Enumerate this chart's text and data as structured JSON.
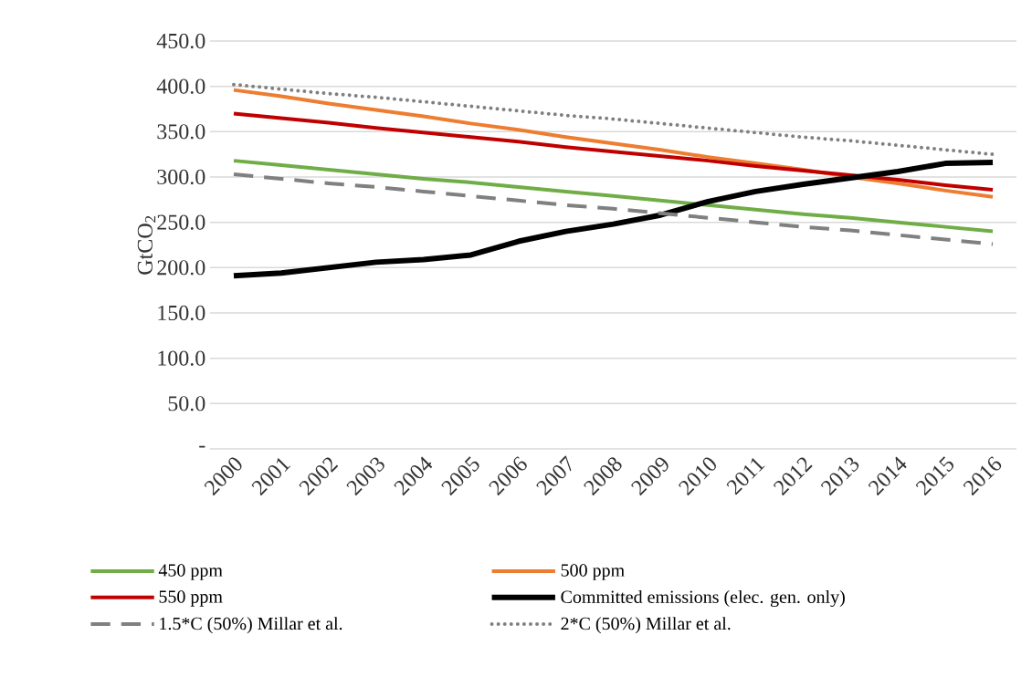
{
  "chart_data": {
    "type": "line",
    "ylabel": "GtCO$_{2}$",
    "categories": [
      "2000",
      "2001",
      "2002",
      "2003",
      "2004",
      "2005",
      "2006",
      "2007",
      "2008",
      "2009",
      "2010",
      "2011",
      "2012",
      "2013",
      "2014",
      "2015",
      "2016"
    ],
    "series": [
      {
        "name": "450 ppm",
        "color": "#70ad47",
        "line_style": "solid",
        "values": [
          318,
          313,
          308,
          303,
          298,
          294,
          289,
          284,
          279,
          274,
          269,
          264,
          259,
          255,
          250,
          245,
          240
        ]
      },
      {
        "name": "500 ppm",
        "color": "#ed7d31",
        "line_style": "solid",
        "values": [
          396,
          389,
          381,
          374,
          367,
          359,
          352,
          344,
          337,
          330,
          322,
          315,
          308,
          300,
          293,
          285,
          278
        ]
      },
      {
        "name": "550 ppm",
        "color": "#c00000",
        "line_style": "solid",
        "values": [
          370,
          365,
          360,
          354,
          349,
          344,
          339,
          333,
          328,
          323,
          318,
          312,
          307,
          302,
          297,
          291,
          286
        ]
      },
      {
        "name": "Committed emissions (elec. gen. only)",
        "color": "#000000",
        "line_style": "solid",
        "values": [
          191,
          194,
          200,
          206,
          209,
          214,
          229,
          240,
          248,
          258,
          273,
          284,
          292,
          299,
          306,
          315,
          316
        ]
      },
      {
        "name": "1.5*C (50%) Millar et al.",
        "color": "#808080",
        "line_style": "dashed",
        "values": [
          303,
          298,
          293,
          289,
          284,
          279,
          274,
          269,
          265,
          260,
          255,
          250,
          245,
          241,
          236,
          231,
          226
        ]
      },
      {
        "name": "2*C (50%) Millar et al.",
        "color": "#808080",
        "line_style": "dotted",
        "values": [
          402,
          397,
          392,
          388,
          383,
          378,
          373,
          368,
          364,
          359,
          354,
          349,
          344,
          340,
          335,
          330,
          325
        ]
      }
    ],
    "ylim": [
      0,
      450
    ],
    "yticks": [
      {
        "value": 0,
        "label": "-"
      },
      {
        "value": 50,
        "label": "50.0"
      },
      {
        "value": 100,
        "label": "100.0"
      },
      {
        "value": 150,
        "label": "150.0"
      },
      {
        "value": 200,
        "label": "200.0"
      },
      {
        "value": 250,
        "label": "250.0"
      },
      {
        "value": 300,
        "label": "300.0"
      },
      {
        "value": 350,
        "label": "350.0"
      },
      {
        "value": 400,
        "label": "400.0"
      },
      {
        "value": 450,
        "label": "450.0"
      }
    ],
    "grid": "y",
    "legend": "bottom",
    "marker": "none"
  }
}
